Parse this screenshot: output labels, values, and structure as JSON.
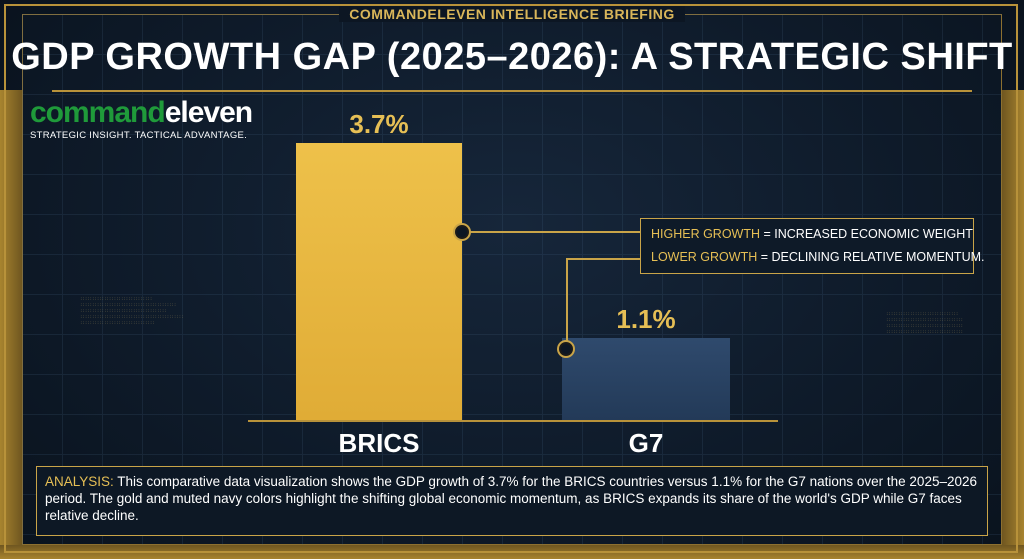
{
  "header": {
    "briefing": "COMMANDELEVEN INTELLIGENCE BRIEFING",
    "title": "GDP GROWTH GAP (2025–2026): A STRATEGIC SHIFT"
  },
  "logo": {
    "part1": "command",
    "part2": "eleven",
    "tagline": "STRATEGIC INSIGHT. TACTICAL ADVANTAGE."
  },
  "chart_data": {
    "type": "bar",
    "categories": [
      "BRICS",
      "G7"
    ],
    "values": [
      3.7,
      1.1
    ],
    "value_labels": [
      "3.7%",
      "1.1%"
    ],
    "title": "GDP GROWTH GAP (2025–2026): A STRATEGIC SHIFT",
    "xlabel": "",
    "ylabel": "",
    "ylim": [
      0,
      3.7
    ],
    "grid": false,
    "colors": [
      "#eec14a",
      "#2f4a6d"
    ]
  },
  "legend": {
    "line1_highlight": "HIGHER GROWTH",
    "line1_rest": " = INCREASED ECONOMIC WEIGHT",
    "line2_highlight": "LOWER GROWTH",
    "line2_rest": " = DECLINING RELATIVE MOMENTUM."
  },
  "analysis": {
    "key": "ANALYSIS:",
    "text": " This comparative data visualization shows the GDP growth of 3.7% for the BRICS countries versus 1.1% for the G7 nations over the 2025–2026 period. The gold and muted navy colors highlight the shifting global economic momentum, as BRICS expands its share of the world's GDP while G7 faces relative decline."
  },
  "colors": {
    "accent_gold": "#c9a448",
    "brics_bar": "#eec14a",
    "g7_bar": "#2f4a6d",
    "background": "#0e1a29"
  }
}
